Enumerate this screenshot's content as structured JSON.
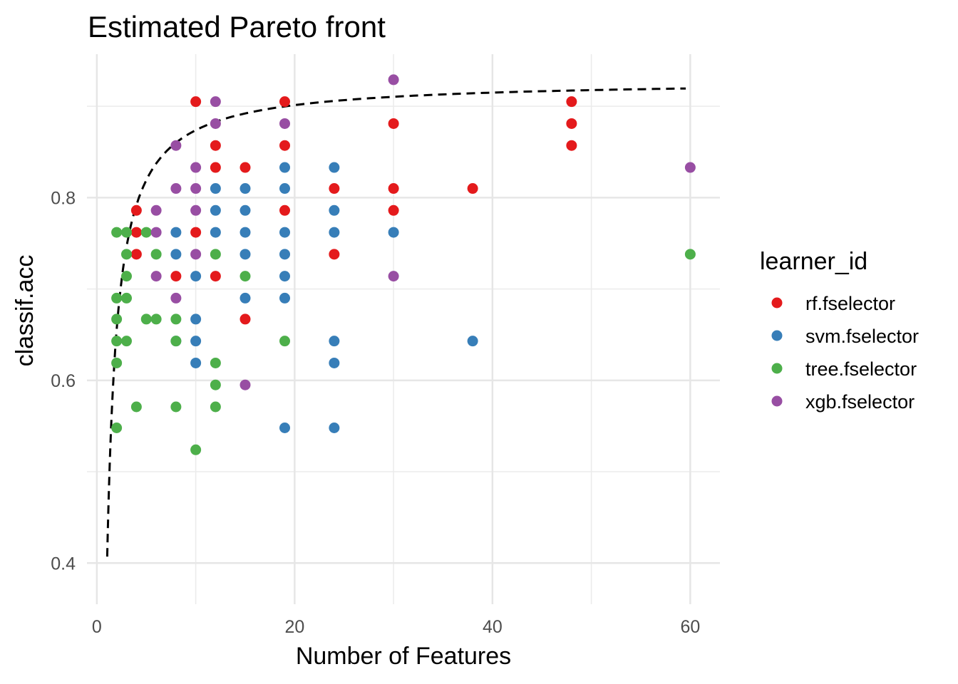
{
  "chart_data": {
    "type": "scatter",
    "title": "Estimated Pareto front",
    "xlabel": "Number of Features",
    "ylabel": "classif.acc",
    "xlim": [
      -1,
      63
    ],
    "ylim": [
      0.355,
      0.957
    ],
    "x_ticks": [
      {
        "value": 0,
        "label": "0"
      },
      {
        "value": 20,
        "label": "20"
      },
      {
        "value": 40,
        "label": "40"
      },
      {
        "value": 60,
        "label": "60"
      }
    ],
    "y_ticks": [
      {
        "value": 0.4,
        "label": "0.4"
      },
      {
        "value": 0.6,
        "label": "0.6"
      },
      {
        "value": 0.8,
        "label": "0.8"
      }
    ],
    "x_minor": [
      10,
      30,
      50
    ],
    "y_minor": [
      0.5,
      0.7,
      0.9
    ],
    "grid": true,
    "legend": {
      "title": "learner_id",
      "placement": "right",
      "entries": [
        "rf.fselector",
        "svm.fselector",
        "tree.fselector",
        "xgb.fselector"
      ]
    },
    "series": [
      {
        "name": "rf.fselector",
        "color": "#e41a1c",
        "points": [
          [
            4,
            0.786
          ],
          [
            4,
            0.762
          ],
          [
            4,
            0.738
          ],
          [
            8,
            0.714
          ],
          [
            10,
            0.905
          ],
          [
            10,
            0.762
          ],
          [
            12,
            0.857
          ],
          [
            12,
            0.833
          ],
          [
            12,
            0.714
          ],
          [
            15,
            0.833
          ],
          [
            15,
            0.667
          ],
          [
            19,
            0.905
          ],
          [
            19,
            0.857
          ],
          [
            19,
            0.786
          ],
          [
            24,
            0.81
          ],
          [
            24,
            0.738
          ],
          [
            30,
            0.881
          ],
          [
            30,
            0.81
          ],
          [
            30,
            0.786
          ],
          [
            38,
            0.81
          ],
          [
            48,
            0.905
          ],
          [
            48,
            0.881
          ],
          [
            48,
            0.857
          ]
        ]
      },
      {
        "name": "svm.fselector",
        "color": "#377eb8",
        "points": [
          [
            8,
            0.762
          ],
          [
            8,
            0.738
          ],
          [
            8,
            0.643
          ],
          [
            10,
            0.714
          ],
          [
            10,
            0.667
          ],
          [
            10,
            0.643
          ],
          [
            10,
            0.619
          ],
          [
            12,
            0.81
          ],
          [
            12,
            0.786
          ],
          [
            12,
            0.762
          ],
          [
            15,
            0.81
          ],
          [
            15,
            0.786
          ],
          [
            15,
            0.762
          ],
          [
            15,
            0.738
          ],
          [
            15,
            0.69
          ],
          [
            19,
            0.833
          ],
          [
            19,
            0.81
          ],
          [
            19,
            0.762
          ],
          [
            19,
            0.738
          ],
          [
            19,
            0.714
          ],
          [
            19,
            0.69
          ],
          [
            19,
            0.548
          ],
          [
            24,
            0.833
          ],
          [
            24,
            0.786
          ],
          [
            24,
            0.762
          ],
          [
            24,
            0.643
          ],
          [
            24,
            0.619
          ],
          [
            24,
            0.548
          ],
          [
            30,
            0.762
          ],
          [
            38,
            0.643
          ]
        ]
      },
      {
        "name": "tree.fselector",
        "color": "#4daf4a",
        "points": [
          [
            2,
            0.762
          ],
          [
            2,
            0.69
          ],
          [
            2,
            0.667
          ],
          [
            2,
            0.643
          ],
          [
            2,
            0.619
          ],
          [
            2,
            0.548
          ],
          [
            3,
            0.762
          ],
          [
            3,
            0.738
          ],
          [
            3,
            0.714
          ],
          [
            3,
            0.69
          ],
          [
            3,
            0.643
          ],
          [
            4,
            0.571
          ],
          [
            5,
            0.762
          ],
          [
            5,
            0.667
          ],
          [
            6,
            0.738
          ],
          [
            6,
            0.667
          ],
          [
            8,
            0.667
          ],
          [
            8,
            0.643
          ],
          [
            8,
            0.571
          ],
          [
            10,
            0.524
          ],
          [
            12,
            0.738
          ],
          [
            12,
            0.619
          ],
          [
            12,
            0.595
          ],
          [
            12,
            0.571
          ],
          [
            15,
            0.714
          ],
          [
            19,
            0.643
          ],
          [
            60,
            0.738
          ]
        ]
      },
      {
        "name": "xgb.fselector",
        "color": "#984ea3",
        "points": [
          [
            6,
            0.786
          ],
          [
            6,
            0.762
          ],
          [
            6,
            0.714
          ],
          [
            8,
            0.857
          ],
          [
            8,
            0.81
          ],
          [
            8,
            0.69
          ],
          [
            10,
            0.833
          ],
          [
            10,
            0.81
          ],
          [
            10,
            0.786
          ],
          [
            10,
            0.738
          ],
          [
            12,
            0.905
          ],
          [
            12,
            0.881
          ],
          [
            15,
            0.595
          ],
          [
            19,
            0.881
          ],
          [
            30,
            0.929
          ],
          [
            30,
            0.714
          ],
          [
            60,
            0.833
          ]
        ]
      }
    ],
    "pareto_front": {
      "style": "dashed",
      "color": "#000000",
      "formula": "y = a - b / x",
      "a": 0.9286,
      "b": 0.5476
    }
  }
}
